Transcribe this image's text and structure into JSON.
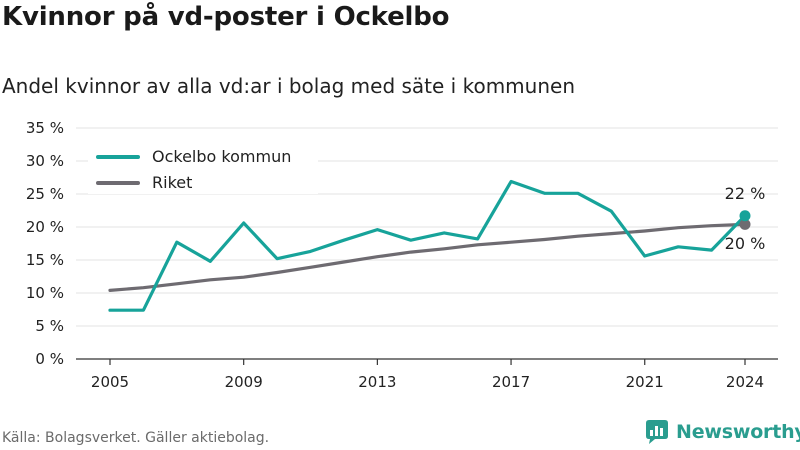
{
  "header": {
    "title": "Kvinnor på vd-poster i Ockelbo",
    "subtitle": "Andel kvinnor av alla vd:ar i bolag med säte i kommunen"
  },
  "footer": {
    "source": "Källa: Bolagsverket. Gäller aktiebolag.",
    "brand": "Newsworthy"
  },
  "colors": {
    "ockelbo": "#17a39a",
    "riket": "#6e6b71",
    "grid": "#e3e3e3",
    "axis": "#333333"
  },
  "chart_data": {
    "type": "line",
    "x": [
      2005,
      2006,
      2007,
      2008,
      2009,
      2010,
      2011,
      2012,
      2013,
      2014,
      2015,
      2016,
      2017,
      2018,
      2019,
      2020,
      2021,
      2022,
      2023,
      2024
    ],
    "series": [
      {
        "name": "Ockelbo kommun",
        "values": [
          7.4,
          7.4,
          17.7,
          14.8,
          20.6,
          15.2,
          16.3,
          18.0,
          19.6,
          18.0,
          19.1,
          18.2,
          26.9,
          25.1,
          25.1,
          22.4,
          15.6,
          17.0,
          16.5,
          21.7
        ]
      },
      {
        "name": "Riket",
        "values": [
          10.4,
          10.8,
          11.4,
          12.0,
          12.4,
          13.1,
          13.9,
          14.7,
          15.5,
          16.2,
          16.7,
          17.3,
          17.7,
          18.1,
          18.6,
          19.0,
          19.4,
          19.9,
          20.2,
          20.4
        ]
      }
    ],
    "xticks": [
      2005,
      2009,
      2013,
      2017,
      2021,
      2024
    ],
    "yticks": [
      0,
      5,
      10,
      15,
      20,
      25,
      30,
      35
    ],
    "ytick_labels": [
      "0 %",
      "5 %",
      "10 %",
      "15 %",
      "20 %",
      "25 %",
      "30 %",
      "35 %"
    ],
    "xlim": [
      2005,
      2024
    ],
    "ylim": [
      0,
      35
    ],
    "end_labels": [
      "22 %",
      "20 %"
    ],
    "grid": true,
    "legend_position": "top-left"
  }
}
